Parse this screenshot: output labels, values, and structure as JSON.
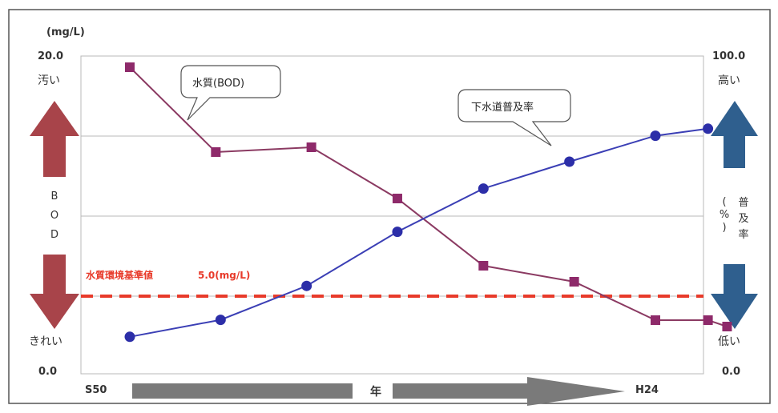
{
  "chart_data": {
    "type": "line",
    "title": "",
    "x_start_label": "S50",
    "x_end_label": "H24",
    "x_axis_label": "年",
    "n_points": 12,
    "left_axis": {
      "unit": "(mg/L)",
      "top_value": "20.0",
      "top_label": "汚い",
      "bottom_value": "0.0",
      "bottom_label": "きれい",
      "name": "BOD",
      "ylim": [
        0,
        20
      ]
    },
    "right_axis": {
      "top_value": "100.0",
      "top_label": "高い",
      "bottom_value": "0.0",
      "bottom_label": "低い",
      "name": "普及率",
      "unit": "(%)",
      "ylim": [
        0,
        100
      ]
    },
    "series": [
      {
        "name": "水質(BOD)",
        "axis": "left",
        "color": "#8b3a62",
        "marker_color": "#8e2a6a",
        "marker": "square",
        "points": [
          {
            "x": 0,
            "y": 19.3
          },
          {
            "x": 1.8,
            "y": 14.0
          },
          {
            "x": 3.8,
            "y": 14.3
          },
          {
            "x": 5.6,
            "y": 11.1
          },
          {
            "x": 7.4,
            "y": 6.9
          },
          {
            "x": 9.3,
            "y": 5.9
          },
          {
            "x": 11.0,
            "y": 3.5
          },
          {
            "x": 12.1,
            "y": 3.5
          },
          {
            "x": 12.5,
            "y": 3.1
          }
        ]
      },
      {
        "name": "下水道普及率",
        "axis": "right",
        "color": "#3b3fb5",
        "marker_color": "#2c2ea8",
        "marker": "circle",
        "points": [
          {
            "x": 0,
            "y": 12.3
          },
          {
            "x": 1.9,
            "y": 17.6
          },
          {
            "x": 3.7,
            "y": 28.2
          },
          {
            "x": 5.6,
            "y": 45.1
          },
          {
            "x": 7.4,
            "y": 58.6
          },
          {
            "x": 9.2,
            "y": 67.0
          },
          {
            "x": 11.0,
            "y": 75.1
          },
          {
            "x": 12.1,
            "y": 77.3
          }
        ]
      }
    ],
    "reference_line": {
      "label": "水質環境基準値",
      "value_text": "5.0(mg/L)",
      "value": 5.0,
      "color": "#e83a2a"
    },
    "callouts": {
      "bod": "水質(BOD)",
      "sewer": "下水道普及率"
    },
    "arrows": {
      "left_color": "#a8444a",
      "right_color": "#2f5f8e",
      "axis_arrow_color": "#7a7a7a"
    }
  }
}
